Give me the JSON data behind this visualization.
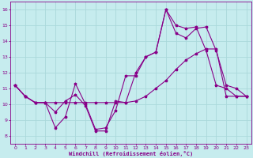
{
  "bg_color": "#c6ecee",
  "line_color": "#880088",
  "grid_color": "#aad8da",
  "xlabel": "Windchill (Refroidissement éolien,°C)",
  "xlim": [
    -0.5,
    23.5
  ],
  "ylim": [
    7.5,
    16.5
  ],
  "yticks": [
    8,
    9,
    10,
    11,
    12,
    13,
    14,
    15,
    16
  ],
  "xticks": [
    0,
    1,
    2,
    3,
    4,
    5,
    6,
    7,
    8,
    9,
    10,
    11,
    12,
    13,
    14,
    15,
    16,
    17,
    18,
    19,
    20,
    21,
    22,
    23
  ],
  "line1_x": [
    0,
    1,
    2,
    3,
    4,
    5,
    6,
    7,
    8,
    9,
    10,
    11,
    12,
    13,
    14,
    15,
    16,
    17,
    18,
    19,
    20,
    21,
    22,
    23
  ],
  "line1_y": [
    11.2,
    10.5,
    10.1,
    10.1,
    8.5,
    9.2,
    11.3,
    10.0,
    8.4,
    8.5,
    9.6,
    11.8,
    11.8,
    13.0,
    13.3,
    16.0,
    15.0,
    14.8,
    14.9,
    13.4,
    11.2,
    11.0,
    10.5,
    10.5
  ],
  "line2_x": [
    0,
    1,
    2,
    3,
    4,
    5,
    6,
    7,
    8,
    9,
    10,
    11,
    12,
    13,
    14,
    15,
    16,
    17,
    18,
    19,
    20,
    21,
    22,
    23
  ],
  "line2_y": [
    11.2,
    10.5,
    10.1,
    10.1,
    9.5,
    10.2,
    10.6,
    9.9,
    8.3,
    8.3,
    10.2,
    10.1,
    12.0,
    13.0,
    13.3,
    16.0,
    14.5,
    14.2,
    14.8,
    14.9,
    13.4,
    11.2,
    11.0,
    10.5
  ],
  "line3_x": [
    0,
    1,
    2,
    3,
    4,
    5,
    6,
    7,
    8,
    9,
    10,
    11,
    12,
    13,
    14,
    15,
    16,
    17,
    18,
    19,
    20,
    21,
    22,
    23
  ],
  "line3_y": [
    11.2,
    10.5,
    10.1,
    10.1,
    10.1,
    10.1,
    10.1,
    10.1,
    10.1,
    10.1,
    10.1,
    10.1,
    10.2,
    10.5,
    11.0,
    11.5,
    12.2,
    12.8,
    13.2,
    13.5,
    13.5,
    10.5,
    10.5,
    10.5
  ]
}
